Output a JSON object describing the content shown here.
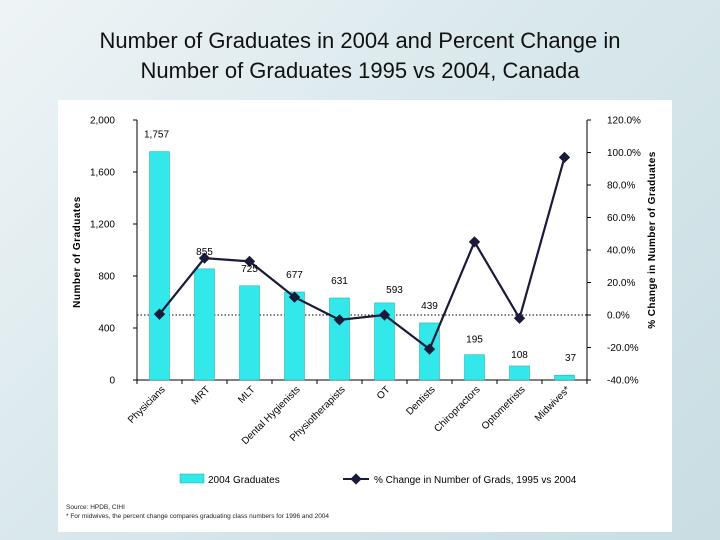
{
  "title_line1": "Number of Graduates in 2004 and Percent Change in",
  "title_line2": "Number of Graduates 1995 vs 2004, Canada",
  "footnote_source": "Source: HPDB, CIHI",
  "footnote_note": "* For midwives, the percent change compares graduating class numbers for 1996 and 2004",
  "colors": {
    "bar": "#33e8ea",
    "bar_stroke": "#1aa8aa",
    "line": "#1a1a3a"
  },
  "chart_data": {
    "type": "bar",
    "categories": [
      "Physicians",
      "MRT",
      "MLT",
      "Dental Hygienists",
      "Physiotherapists",
      "OT",
      "Dentists",
      "Chiropractors",
      "Optometrists",
      "Midwives*"
    ],
    "series": [
      {
        "name": "2004 Graduates",
        "type": "bar",
        "axis": "left",
        "values": [
          1757,
          855,
          725,
          677,
          631,
          593,
          439,
          195,
          108,
          37
        ],
        "labels": [
          "1,757",
          "855",
          "725",
          "677",
          "631",
          "593",
          "439",
          "195",
          "108",
          "37"
        ]
      },
      {
        "name": "% Change in Number of Grads, 1995 vs 2004",
        "type": "line",
        "axis": "right",
        "values": [
          0.5,
          35.0,
          33.0,
          11.0,
          -3.0,
          0.0,
          -21.0,
          45.0,
          -2.0,
          97.0
        ]
      }
    ],
    "ylabel_left": "Number of Graduates",
    "ylabel_right": "% Change in Number of Graduates",
    "ylim_left": [
      0,
      2000
    ],
    "yticks_left": [
      "0",
      "400",
      "800",
      "1,200",
      "1,600",
      "2,000"
    ],
    "ylim_right": [
      -40,
      120
    ],
    "yticks_right": [
      "-40.0%",
      "-20.0%",
      "0.0%",
      "20.0%",
      "40.0%",
      "60.0%",
      "80.0%",
      "100.0%",
      "120.0%"
    ],
    "reference_line": "dotted line at 0.0%",
    "grid": false,
    "legend_position": "bottom"
  }
}
